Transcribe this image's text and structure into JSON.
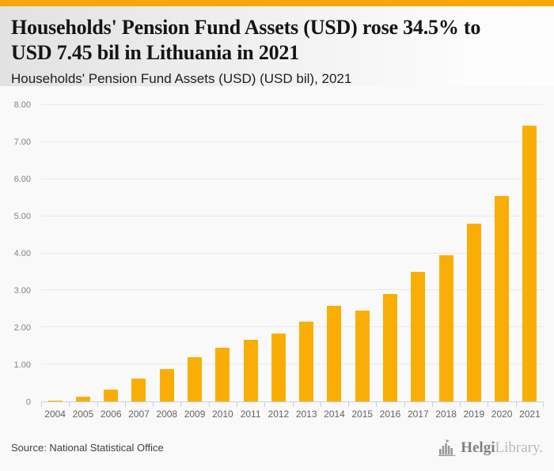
{
  "page": {
    "accent_bar_color": "#F7A808",
    "background": "#f9f9f9"
  },
  "header": {
    "title_line1": "Households' Pension Fund Assets (USD) rose 34.5% to",
    "title_line2": "USD 7.45 bil in Lithuania in 2021",
    "subtitle": "Households' Pension Fund Assets (USD) (USD bil), 2021"
  },
  "chart_data": {
    "type": "bar",
    "title": "Households' Pension Fund Assets (USD) rose 34.5% to USD 7.45 bil in Lithuania in 2021",
    "subtitle": "Households' Pension Fund Assets (USD) (USD bil), 2021",
    "categories": [
      "2004",
      "2005",
      "2006",
      "2007",
      "2008",
      "2009",
      "2010",
      "2011",
      "2012",
      "2013",
      "2014",
      "2015",
      "2016",
      "2017",
      "2018",
      "2019",
      "2020",
      "2021"
    ],
    "values": [
      0.03,
      0.13,
      0.32,
      0.61,
      0.87,
      1.2,
      1.46,
      1.67,
      1.84,
      2.16,
      2.58,
      2.46,
      2.91,
      3.49,
      3.94,
      4.79,
      5.54,
      7.45
    ],
    "xlabel": "",
    "ylabel": "",
    "ylim": [
      0,
      8
    ],
    "ytick_labels": [
      "0",
      "1.00",
      "2.00",
      "3.00",
      "4.00",
      "5.00",
      "6.00",
      "7.00",
      "8.00"
    ],
    "grid": true,
    "legend": false,
    "bar_color": "#FAAE05",
    "gridline_color": "#e9e9e9",
    "axis_color": "#c9cfde"
  },
  "footer": {
    "source": "Source: National Statistical Office",
    "logo": {
      "icon": "bar-chart-building-icon",
      "text_primary": "Helgi",
      "text_secondary": "Library."
    }
  }
}
